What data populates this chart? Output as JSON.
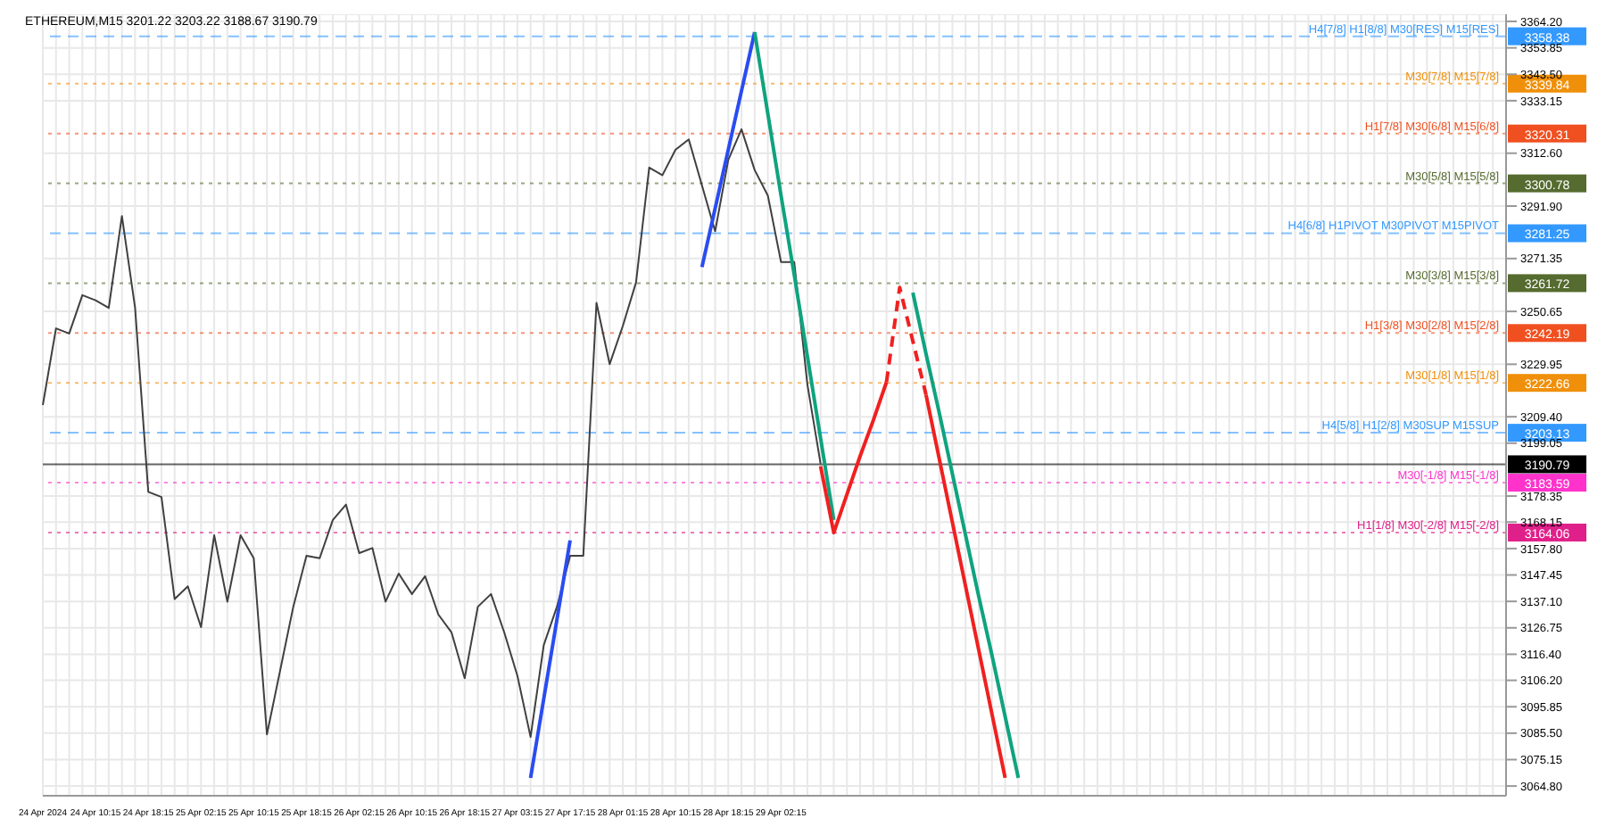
{
  "chart_data": {
    "type": "line",
    "title": "ETHEREUM,M15  3201.22 3203.22 3188.67 3190.79",
    "categories": [
      "24 Apr 2024",
      null,
      null,
      null,
      "24 Apr 10:15",
      null,
      null,
      null,
      "24 Apr 18:15",
      null,
      null,
      null,
      "25 Apr 02:15",
      null,
      null,
      null,
      "25 Apr 10:15",
      null,
      null,
      null,
      "25 Apr 18:15",
      null,
      null,
      null,
      "26 Apr 02:15",
      null,
      null,
      null,
      "26 Apr 10:15",
      null,
      null,
      null,
      "26 Apr 18:15",
      null,
      null,
      null,
      "27 Apr 03:15",
      null,
      null,
      null,
      "27 Apr 17:15",
      null,
      null,
      null,
      "28 Apr 01:15",
      null,
      null,
      null,
      "28 Apr 10:15",
      null,
      null,
      null,
      "28 Apr 18:15",
      null,
      null,
      null,
      "29 Apr 02:15",
      null,
      null,
      null,
      null,
      null,
      null,
      null,
      null,
      null,
      null,
      null,
      null,
      null,
      null,
      null,
      null,
      null,
      null,
      null,
      null,
      null,
      null,
      null,
      null,
      null,
      null,
      null,
      null,
      null,
      null,
      null,
      null,
      null,
      null,
      null,
      null,
      null,
      null,
      null,
      null,
      null,
      null,
      null,
      null,
      null,
      null,
      null,
      null,
      null,
      null,
      null,
      null,
      null,
      null,
      null
    ],
    "ylim": [
      3061,
      3367
    ],
    "yticks": [
      {
        "value": 3364.2,
        "label": "3364.20"
      },
      {
        "value": 3353.85,
        "label": "3353.85"
      },
      {
        "value": 3343.5,
        "label": "3343.50"
      },
      {
        "value": 3333.15,
        "label": "3333.15"
      },
      {
        "value": 3312.6,
        "label": "3312.60"
      },
      {
        "value": 3291.9,
        "label": "3291.90"
      },
      {
        "value": 3271.35,
        "label": "3271.35"
      },
      {
        "value": 3250.65,
        "label": "3250.65"
      },
      {
        "value": 3229.95,
        "label": "3229.95"
      },
      {
        "value": 3209.4,
        "label": "3209.40"
      },
      {
        "value": 3199.05,
        "label": "3199.05"
      },
      {
        "value": 3178.35,
        "label": "3178.35"
      },
      {
        "value": 3168.15,
        "label": "3168.15"
      },
      {
        "value": 3157.8,
        "label": "3157.80"
      },
      {
        "value": 3147.45,
        "label": "3147.45"
      },
      {
        "value": 3137.1,
        "label": "3137.10"
      },
      {
        "value": 3126.75,
        "label": "3126.75"
      },
      {
        "value": 3116.4,
        "label": "3116.40"
      },
      {
        "value": 3106.2,
        "label": "3106.20"
      },
      {
        "value": 3095.85,
        "label": "3095.85"
      },
      {
        "value": 3085.5,
        "label": "3085.50"
      },
      {
        "value": 3075.15,
        "label": "3075.15"
      },
      {
        "value": 3064.8,
        "label": "3064.80"
      }
    ],
    "grid": true,
    "marker": "none",
    "series": [
      {
        "color": "#404040",
        "line_style": "solid",
        "values": [
          3214,
          3244,
          3242,
          3257,
          3255,
          3252,
          3288,
          3252,
          3180,
          3178,
          3138,
          3143,
          3127,
          3163,
          3137,
          3163,
          3154,
          3085,
          3110,
          3135,
          3155,
          3154,
          3169,
          3175,
          3156,
          3158,
          3137,
          3148,
          3140,
          3147,
          3132,
          3125,
          3107,
          3135,
          3140,
          3125,
          3108,
          3084,
          3120,
          3135,
          3155,
          3155,
          3254,
          3230,
          3245,
          3262,
          3307,
          3304,
          3314,
          3318,
          3300,
          3282,
          3310,
          3322,
          3306,
          3296,
          3270,
          3270,
          3222,
          3191,
          null,
          null,
          null,
          null,
          null,
          null,
          null,
          null,
          null,
          null,
          null,
          null,
          null,
          null,
          null,
          null,
          null,
          null,
          null,
          null,
          null,
          null,
          null,
          null,
          null,
          null,
          null,
          null,
          null,
          null,
          null,
          null,
          null,
          null,
          null,
          null,
          null,
          null,
          null,
          null,
          null,
          null,
          null,
          null,
          null,
          null,
          null,
          null,
          null,
          null,
          null,
          null
        ]
      },
      {
        "color": "#2a4cf0",
        "line_style": "solid",
        "values": [
          null,
          null,
          null,
          null,
          null,
          null,
          null,
          null,
          null,
          null,
          null,
          null,
          null,
          null,
          null,
          null,
          null,
          null,
          null,
          null,
          null,
          null,
          null,
          null,
          null,
          null,
          null,
          null,
          null,
          null,
          null,
          null,
          null,
          null,
          null,
          null,
          null,
          3068,
          3099,
          3130,
          3161,
          null,
          null,
          null,
          null,
          null,
          null,
          null,
          null,
          null,
          null,
          null,
          null,
          null,
          null,
          null,
          null,
          null,
          null,
          null,
          null,
          null,
          null,
          null,
          null,
          null,
          null,
          null,
          null,
          null,
          null,
          null,
          null,
          null,
          null,
          null,
          null,
          null,
          null,
          null,
          null,
          null,
          null,
          null,
          null,
          null,
          null,
          null,
          null,
          null,
          null,
          null,
          null,
          null,
          null,
          null,
          null,
          null,
          null,
          null,
          null,
          null,
          null,
          null,
          null,
          null,
          null,
          null,
          null,
          null,
          null,
          null
        ]
      },
      {
        "color": "#2a4cf0",
        "line_style": "solid",
        "values": [
          null,
          null,
          null,
          null,
          null,
          null,
          null,
          null,
          null,
          null,
          null,
          null,
          null,
          null,
          null,
          null,
          null,
          null,
          null,
          null,
          null,
          null,
          null,
          null,
          null,
          null,
          null,
          null,
          null,
          null,
          null,
          null,
          null,
          null,
          null,
          null,
          null,
          null,
          null,
          null,
          null,
          null,
          null,
          null,
          null,
          null,
          null,
          null,
          null,
          null,
          3268,
          3291,
          3314,
          3337,
          3360,
          null,
          null,
          null,
          null,
          null,
          null,
          null,
          null,
          null,
          null,
          null,
          null,
          null,
          null,
          null,
          null,
          null,
          null,
          null,
          null,
          null,
          null,
          null,
          null,
          null,
          null,
          null,
          null,
          null,
          null,
          null,
          null,
          null,
          null,
          null,
          null,
          null,
          null,
          null,
          null,
          null,
          null,
          null,
          null,
          null,
          null,
          null,
          null,
          null,
          null,
          null,
          null,
          null,
          null,
          null,
          null,
          null
        ]
      },
      {
        "color": "#0fa37f",
        "line_style": "solid",
        "values": [
          null,
          null,
          null,
          null,
          null,
          null,
          null,
          null,
          null,
          null,
          null,
          null,
          null,
          null,
          null,
          null,
          null,
          null,
          null,
          null,
          null,
          null,
          null,
          null,
          null,
          null,
          null,
          null,
          null,
          null,
          null,
          null,
          null,
          null,
          null,
          null,
          null,
          null,
          null,
          null,
          null,
          null,
          null,
          null,
          null,
          null,
          null,
          null,
          null,
          null,
          null,
          null,
          null,
          null,
          3360,
          3328,
          3296,
          3265,
          3233,
          3201,
          3169,
          null,
          null,
          null,
          null,
          null,
          null,
          null,
          null,
          null,
          null,
          null,
          null,
          null,
          null,
          null,
          null,
          null,
          null,
          null,
          null,
          null,
          null,
          null,
          null,
          null,
          null,
          null,
          null,
          null,
          null,
          null,
          null,
          null,
          null,
          null,
          null,
          null,
          null,
          null,
          null,
          null,
          null,
          null,
          null,
          null,
          null,
          null,
          null,
          null,
          null,
          null
        ]
      },
      {
        "color": "#0fa37f",
        "line_style": "solid",
        "values": [
          null,
          null,
          null,
          null,
          null,
          null,
          null,
          null,
          null,
          null,
          null,
          null,
          null,
          null,
          null,
          null,
          null,
          null,
          null,
          null,
          null,
          null,
          null,
          null,
          null,
          null,
          null,
          null,
          null,
          null,
          null,
          null,
          null,
          null,
          null,
          null,
          null,
          null,
          null,
          null,
          null,
          null,
          null,
          null,
          null,
          null,
          null,
          null,
          null,
          null,
          null,
          null,
          null,
          null,
          null,
          null,
          null,
          null,
          null,
          null,
          null,
          null,
          null,
          null,
          null,
          null,
          3258,
          3234,
          3211,
          3187,
          3163,
          3139,
          3116,
          3092,
          3068,
          null,
          null,
          null,
          null,
          null,
          null,
          null,
          null,
          null,
          null,
          null,
          null,
          null,
          null,
          null,
          null,
          null,
          null,
          null,
          null,
          null,
          null,
          null,
          null,
          null,
          null,
          null,
          null,
          null,
          null,
          null,
          null,
          null,
          null,
          null,
          null,
          null
        ]
      },
      {
        "color": "#f02020",
        "line_style": "solid",
        "values": [
          null,
          null,
          null,
          null,
          null,
          null,
          null,
          null,
          null,
          null,
          null,
          null,
          null,
          null,
          null,
          null,
          null,
          null,
          null,
          null,
          null,
          null,
          null,
          null,
          null,
          null,
          null,
          null,
          null,
          null,
          null,
          null,
          null,
          null,
          null,
          null,
          null,
          null,
          null,
          null,
          null,
          null,
          null,
          null,
          null,
          null,
          null,
          null,
          null,
          null,
          null,
          null,
          null,
          null,
          null,
          null,
          null,
          null,
          null,
          3190,
          3164,
          3179,
          3194,
          3208,
          3223,
          null,
          null,
          null,
          null,
          null,
          null,
          null,
          null,
          null,
          null,
          null,
          null,
          null,
          null,
          null,
          null,
          null,
          null,
          null,
          null,
          null,
          null,
          null,
          null,
          null,
          null,
          null,
          null,
          null,
          null,
          null,
          null,
          null,
          null,
          null,
          null,
          null,
          null,
          null,
          null,
          null,
          null,
          null,
          null,
          null,
          null,
          null
        ]
      },
      {
        "color": "#f02020",
        "line_style": "dashed",
        "values": [
          null,
          null,
          null,
          null,
          null,
          null,
          null,
          null,
          null,
          null,
          null,
          null,
          null,
          null,
          null,
          null,
          null,
          null,
          null,
          null,
          null,
          null,
          null,
          null,
          null,
          null,
          null,
          null,
          null,
          null,
          null,
          null,
          null,
          null,
          null,
          null,
          null,
          null,
          null,
          null,
          null,
          null,
          null,
          null,
          null,
          null,
          null,
          null,
          null,
          null,
          null,
          null,
          null,
          null,
          null,
          null,
          null,
          null,
          null,
          null,
          null,
          null,
          null,
          null,
          3223,
          3260,
          3239,
          3218,
          null,
          null,
          null,
          null,
          null,
          null,
          null,
          null,
          null,
          null,
          null,
          null,
          null,
          null,
          null,
          null,
          null,
          null,
          null,
          null,
          null,
          null,
          null,
          null,
          null,
          null,
          null,
          null,
          null,
          null,
          null,
          null,
          null,
          null,
          null,
          null,
          null,
          null,
          null,
          null,
          null,
          null,
          null,
          null
        ]
      },
      {
        "color": "#f02020",
        "line_style": "solid",
        "values": [
          null,
          null,
          null,
          null,
          null,
          null,
          null,
          null,
          null,
          null,
          null,
          null,
          null,
          null,
          null,
          null,
          null,
          null,
          null,
          null,
          null,
          null,
          null,
          null,
          null,
          null,
          null,
          null,
          null,
          null,
          null,
          null,
          null,
          null,
          null,
          null,
          null,
          null,
          null,
          null,
          null,
          null,
          null,
          null,
          null,
          null,
          null,
          null,
          null,
          null,
          null,
          null,
          null,
          null,
          null,
          null,
          null,
          null,
          null,
          null,
          null,
          null,
          null,
          null,
          null,
          null,
          null,
          3218,
          3193,
          3168,
          3143,
          3118,
          3093,
          3068,
          null,
          null,
          null,
          null,
          null,
          null,
          null,
          null,
          null,
          null,
          null,
          null,
          null,
          null,
          null,
          null,
          null,
          null,
          null,
          null,
          null,
          null,
          null,
          null,
          null,
          null,
          null,
          null,
          null,
          null,
          null,
          null,
          null,
          null,
          null,
          null,
          null,
          null
        ]
      }
    ],
    "ref_lines": [
      {
        "axis": "y",
        "value": 3358.38,
        "label": "H4[7/8] H1[8/8] M30[RES] M15[RES]",
        "color": "#3399ff",
        "line_style": "dashed"
      },
      {
        "axis": "y",
        "value": 3339.84,
        "label": "M30[7/8] M15[7/8]",
        "color": "#f0900a",
        "line_style": "dotted"
      },
      {
        "axis": "y",
        "value": 3320.31,
        "label": "H1[7/8] M30[6/8] M15[6/8]",
        "color": "#f05020",
        "line_style": "dotted"
      },
      {
        "axis": "y",
        "value": 3300.78,
        "label": "M30[5/8] M15[5/8]",
        "color": "#556b2f",
        "line_style": "dotted"
      },
      {
        "axis": "y",
        "value": 3281.25,
        "label": "H4[6/8] H1PIVOT M30PIVOT M15PIVOT",
        "color": "#3399ff",
        "line_style": "dashed"
      },
      {
        "axis": "y",
        "value": 3261.72,
        "label": "M30[3/8] M15[3/8]",
        "color": "#556b2f",
        "line_style": "dotted"
      },
      {
        "axis": "y",
        "value": 3242.19,
        "label": "H1[3/8] M30[2/8] M15[2/8]",
        "color": "#f05020",
        "line_style": "dotted"
      },
      {
        "axis": "y",
        "value": 3222.66,
        "label": "M30[1/8] M15[1/8]",
        "color": "#f0900a",
        "line_style": "dotted"
      },
      {
        "axis": "y",
        "value": 3203.13,
        "label": "H4[5/8] H1[2/8] M30SUP M15SUP",
        "color": "#3399ff",
        "line_style": "dashed"
      },
      {
        "axis": "y",
        "value": 3190.79,
        "label": null,
        "color": "#000000",
        "line_style": "solid"
      },
      {
        "axis": "y",
        "value": 3183.59,
        "label": "M30[-1/8] M15[-1/8]",
        "color": "#ff33cc",
        "line_style": "dotted"
      },
      {
        "axis": "y",
        "value": 3164.06,
        "label": "H1[1/8] M30[-2/8] M15[-2/8]",
        "color": "#e0208a",
        "line_style": "dotted"
      }
    ],
    "annotations": [
      "3358.38",
      "3339.84",
      "3320.31",
      "3300.78",
      "3281.25",
      "3261.72",
      "3242.19",
      "3222.66",
      "3203.13",
      "3190.79",
      "3183.59",
      "3164.06"
    ]
  }
}
